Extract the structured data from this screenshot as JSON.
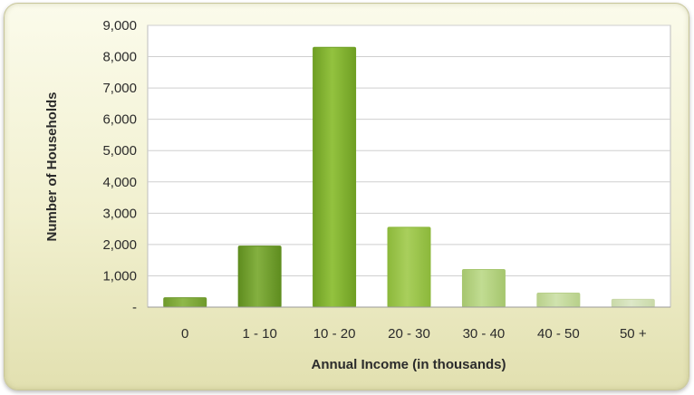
{
  "chart_data": {
    "type": "bar",
    "title": "",
    "xlabel": "Annual Income (in thousands)",
    "ylabel": "Number of Households",
    "categories": [
      "0",
      "1 - 10",
      "10 - 20",
      "20 - 30",
      "30 - 40",
      "40 - 50",
      "50 +"
    ],
    "values": [
      300,
      1950,
      8300,
      2550,
      1200,
      450,
      250
    ],
    "ylim": [
      0,
      9000
    ],
    "yticks": [
      0,
      1000,
      2000,
      3000,
      4000,
      5000,
      6000,
      7000,
      8000,
      9000
    ],
    "ytick_labels": [
      "-",
      "1,000",
      "2,000",
      "3,000",
      "4,000",
      "5,000",
      "6,000",
      "7,000",
      "8,000",
      "9,000"
    ],
    "grid": true,
    "legend": "none",
    "colors": {
      "bars": [
        "#6f9a2c",
        "#5f8d1f",
        "#6f9f23",
        "#8cb83b",
        "#a6c66e",
        "#b8d08a",
        "#c9d9a8"
      ],
      "bar_highlight": [
        "#8fb84a",
        "#84b040",
        "#93c23f",
        "#a9cf5c",
        "#c1dc92",
        "#d0e2ae",
        "#dde8c8"
      ],
      "grid": "#cfcfcf",
      "plot_background": "#ffffff",
      "frame_background": "#f3f2d6"
    }
  }
}
